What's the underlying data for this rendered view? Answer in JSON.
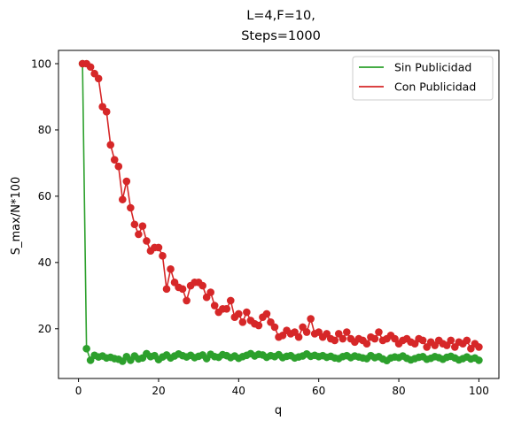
{
  "chart_data": {
    "type": "line",
    "title_line1": "L=4,F=10,",
    "title_line2": "Steps=1000",
    "xlabel": "q",
    "ylabel": "S_max/N*100",
    "xlim": [
      -5,
      105
    ],
    "ylim": [
      5,
      104
    ],
    "xticks": [
      0,
      20,
      40,
      60,
      80,
      100
    ],
    "yticks": [
      20,
      40,
      60,
      80,
      100
    ],
    "grid": false,
    "legend_position": "top-right",
    "x": [
      1,
      2,
      3,
      4,
      5,
      6,
      7,
      8,
      9,
      10,
      11,
      12,
      13,
      14,
      15,
      16,
      17,
      18,
      19,
      20,
      21,
      22,
      23,
      24,
      25,
      26,
      27,
      28,
      29,
      30,
      31,
      32,
      33,
      34,
      35,
      36,
      37,
      38,
      39,
      40,
      41,
      42,
      43,
      44,
      45,
      46,
      47,
      48,
      49,
      50,
      51,
      52,
      53,
      54,
      55,
      56,
      57,
      58,
      59,
      60,
      61,
      62,
      63,
      64,
      65,
      66,
      67,
      68,
      69,
      70,
      71,
      72,
      73,
      74,
      75,
      76,
      77,
      78,
      79,
      80,
      81,
      82,
      83,
      84,
      85,
      86,
      87,
      88,
      89,
      90,
      91,
      92,
      93,
      94,
      95,
      96,
      97,
      98,
      99,
      100
    ],
    "series": [
      {
        "name": "Sin Publicidad",
        "color": "#2ca02c",
        "values": [
          100,
          14,
          10.5,
          12,
          11.5,
          11.8,
          11.2,
          11.4,
          11,
          10.8,
          10.2,
          11.6,
          10.5,
          11.8,
          10.9,
          11.2,
          12.5,
          11.6,
          11.9,
          10.7,
          11.5,
          12.1,
          11.2,
          11.8,
          12.4,
          11.9,
          11.5,
          12.0,
          11.3,
          11.7,
          12.1,
          11.0,
          12.3,
          11.6,
          11.4,
          12.2,
          11.9,
          11.3,
          11.8,
          11.1,
          11.6,
          12.0,
          12.5,
          11.8,
          12.3,
          12.1,
          11.4,
          11.9,
          11.6,
          12.2,
          11.3,
          11.7,
          11.9,
          11.2,
          11.5,
          11.8,
          12.4,
          11.7,
          12.0,
          11.6,
          11.9,
          11.4,
          11.7,
          11.2,
          11.0,
          11.6,
          11.9,
          11.3,
          11.8,
          11.5,
          11.2,
          11.0,
          11.9,
          11.3,
          11.6,
          10.9,
          10.4,
          11.2,
          11.5,
          11.3,
          11.8,
          11.1,
          10.6,
          11.0,
          11.4,
          11.6,
          10.8,
          11.1,
          11.6,
          11.3,
          10.8,
          11.4,
          11.7,
          11.2,
          10.6,
          11.0,
          11.5,
          10.9,
          11.2,
          10.5
        ]
      },
      {
        "name": "Con Publicidad",
        "color": "#d62728",
        "values": [
          100,
          100,
          99,
          97,
          95.5,
          87,
          85.5,
          75.5,
          71,
          69,
          59,
          64.5,
          56.5,
          51.5,
          48.5,
          51,
          46.5,
          43.5,
          44.5,
          44.5,
          42,
          32,
          38,
          34,
          32.5,
          32,
          28.5,
          33,
          34,
          34,
          33,
          29.5,
          31,
          27,
          25,
          26,
          26,
          28.5,
          23.5,
          24.5,
          22,
          25,
          22.5,
          21.5,
          21,
          23.5,
          24.5,
          22,
          20.5,
          17.5,
          18,
          19.5,
          18.5,
          19,
          17.5,
          20.5,
          19,
          23,
          18.5,
          19,
          17.5,
          18.5,
          17,
          16.5,
          18.5,
          17,
          19,
          17,
          16,
          17,
          16.5,
          15.5,
          17.5,
          17,
          19,
          16.5,
          17,
          18,
          17,
          15.5,
          16.5,
          17,
          16,
          15.5,
          17,
          16.5,
          14.5,
          16,
          15,
          16.5,
          15.5,
          15,
          16.5,
          14.5,
          16,
          15.5,
          16.5,
          14,
          15.5,
          14.5
        ]
      }
    ]
  }
}
